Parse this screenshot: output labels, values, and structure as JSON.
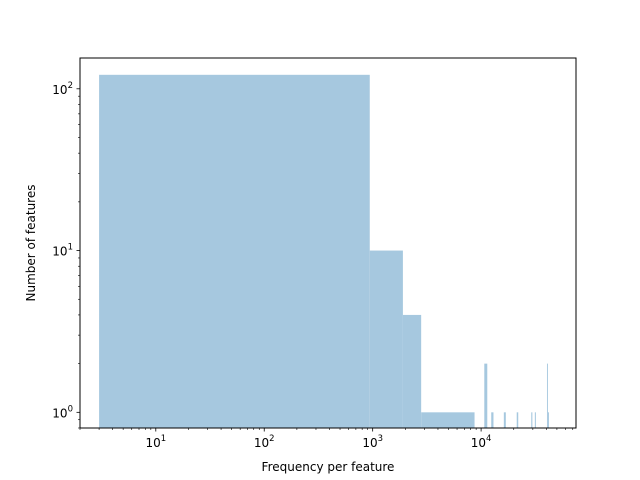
{
  "chart_data": {
    "type": "bar",
    "subtype": "histogram",
    "xlabel": "Frequency per feature",
    "ylabel": "Number of features",
    "xscale": "log",
    "yscale": "log",
    "xlim": [
      2,
      75000
    ],
    "ylim": [
      0.8,
      155
    ],
    "x_ticks": [
      {
        "value": 10,
        "base": "10",
        "exp": "1"
      },
      {
        "value": 100,
        "base": "10",
        "exp": "2"
      },
      {
        "value": 1000,
        "base": "10",
        "exp": "3"
      },
      {
        "value": 10000,
        "base": "10",
        "exp": "4"
      }
    ],
    "y_ticks": [
      {
        "value": 1,
        "base": "10",
        "exp": "0"
      },
      {
        "value": 10,
        "base": "10",
        "exp": "1"
      },
      {
        "value": 100,
        "base": "10",
        "exp": "2"
      }
    ],
    "bar_color": "#a6c8df",
    "grid": false,
    "bins": [
      {
        "x0": 3,
        "x1": 940,
        "count": 122
      },
      {
        "x0": 940,
        "x1": 1900,
        "count": 10
      },
      {
        "x0": 1900,
        "x1": 2800,
        "count": 4
      },
      {
        "x0": 2800,
        "x1": 8700,
        "count": 1
      },
      {
        "x0": 10700,
        "x1": 11400,
        "count": 2
      },
      {
        "x0": 12400,
        "x1": 13000,
        "count": 1
      },
      {
        "x0": 16200,
        "x1": 16900,
        "count": 1
      },
      {
        "x0": 21300,
        "x1": 22000,
        "count": 1
      },
      {
        "x0": 29000,
        "x1": 29700,
        "count": 1
      },
      {
        "x0": 31300,
        "x1": 32000,
        "count": 1
      },
      {
        "x0": 40500,
        "x1": 41300,
        "count": 2
      },
      {
        "x0": 41300,
        "x1": 42200,
        "count": 1
      }
    ]
  }
}
